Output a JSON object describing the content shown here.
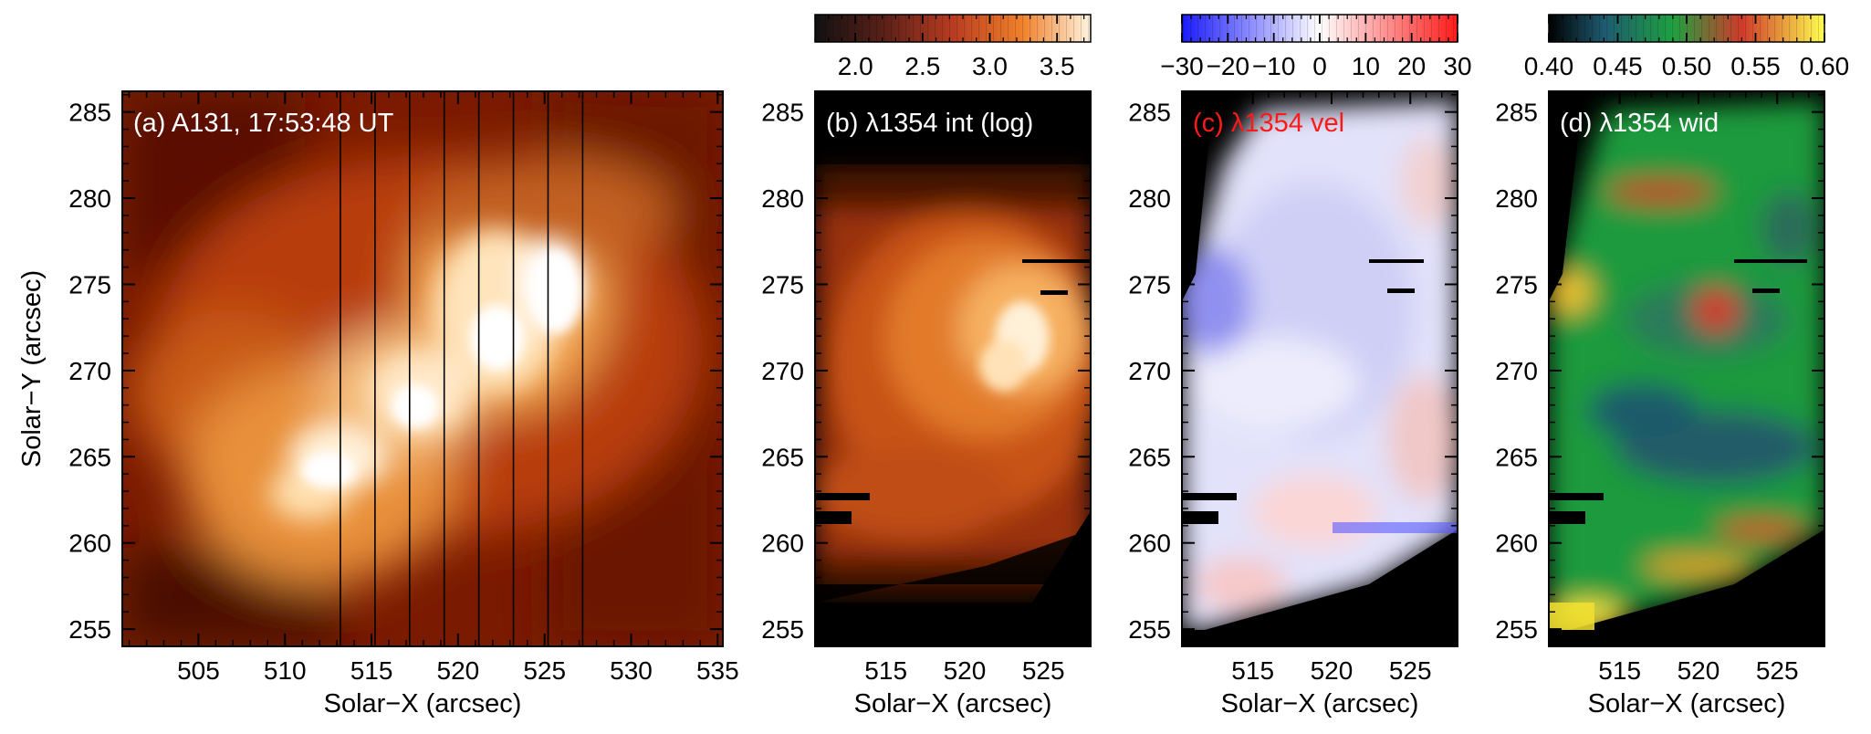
{
  "chart_data": [
    {
      "type": "heatmap",
      "panel": "a",
      "title": "(a) A131, 17:53:48 UT",
      "title_color": "#ffffff",
      "xlabel": "Solar−X (arcsec)",
      "ylabel": "Solar−Y (arcsec)",
      "xlim": [
        500.6,
        535.3
      ],
      "ylim": [
        254.0,
        286.2
      ],
      "xticks": [
        505,
        510,
        515,
        520,
        525,
        530,
        535
      ],
      "yticks": [
        255,
        260,
        265,
        270,
        275,
        280,
        285
      ],
      "colormap": [
        "#2a0000",
        "#7a1200",
        "#c24a08",
        "#f29a3a",
        "#ffe2b0",
        "#ffffff"
      ],
      "slit_positions": [
        513.2,
        515.2,
        517.2,
        519.2,
        521.2,
        523.2,
        525.2,
        527.2
      ]
    },
    {
      "type": "heatmap",
      "panel": "b",
      "title": "(b) λ1354 int (log)",
      "title_color": "#ffffff",
      "xlabel": "Solar−X (arcsec)",
      "xlim": [
        510.5,
        528.0
      ],
      "ylim": [
        254.0,
        286.2
      ],
      "xticks": [
        515,
        520,
        525
      ],
      "yticks": [
        255,
        260,
        265,
        270,
        275,
        280,
        285
      ],
      "colorbar": {
        "range": [
          1.7,
          3.75
        ],
        "ticks": [
          "2.0",
          "2.5",
          "3.0",
          "3.5"
        ],
        "tick_values": [
          2.0,
          2.5,
          3.0,
          3.5
        ]
      },
      "colormap": [
        "#000000",
        "#3a0800",
        "#8a2a00",
        "#d26018",
        "#f4a050",
        "#ffe6c0",
        "#ffffff"
      ]
    },
    {
      "type": "heatmap",
      "panel": "c",
      "title": "(c) λ1354 vel",
      "title_color": "#ff1a1a",
      "xlabel": "Solar−X (arcsec)",
      "xlim": [
        510.5,
        528.0
      ],
      "ylim": [
        254.0,
        286.2
      ],
      "xticks": [
        515,
        520,
        525
      ],
      "yticks": [
        255,
        260,
        265,
        270,
        275,
        280,
        285
      ],
      "colorbar": {
        "range": [
          -30,
          30
        ],
        "ticks": [
          "−30",
          "−20",
          "−10",
          "0",
          "10",
          "20",
          "30"
        ],
        "tick_values": [
          -30,
          -20,
          -10,
          0,
          10,
          20,
          30
        ]
      },
      "colormap": [
        "#1a1aff",
        "#8c8cff",
        "#ffffff",
        "#ff8c8c",
        "#ff1a1a"
      ]
    },
    {
      "type": "heatmap",
      "panel": "d",
      "title": "(d) λ1354 wid",
      "title_color": "#ffffff",
      "xlabel": "Solar−X (arcsec)",
      "xlim": [
        510.5,
        528.0
      ],
      "ylim": [
        254.0,
        286.2
      ],
      "xticks": [
        515,
        520,
        525
      ],
      "yticks": [
        255,
        260,
        265,
        270,
        275,
        280,
        285
      ],
      "colorbar": {
        "range": [
          0.4,
          0.6
        ],
        "ticks": [
          "0.40",
          "0.45",
          "0.50",
          "0.55",
          "0.60"
        ],
        "tick_values": [
          0.4,
          0.45,
          0.5,
          0.55,
          0.6
        ]
      },
      "colormap": [
        "#000000",
        "#1a5a6a",
        "#1c9a3c",
        "#c83a28",
        "#f0e040",
        "#ffff60"
      ]
    }
  ]
}
